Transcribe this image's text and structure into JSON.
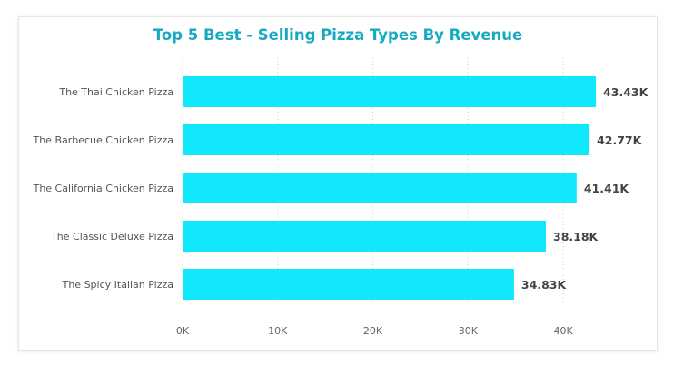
{
  "chart_data": {
    "type": "bar",
    "orientation": "horizontal",
    "title": "Top 5 Best - Selling Pizza Types By Revenue",
    "categories": [
      "The Thai Chicken Pizza",
      "The Barbecue Chicken Pizza",
      "The California Chicken Pizza",
      "The Classic Deluxe Pizza",
      "The Spicy Italian Pizza"
    ],
    "values": [
      43434,
      42768,
      41410,
      38180,
      34831
    ],
    "data_labels": [
      "43.43K",
      "42.77K",
      "41.41K",
      "38.18K",
      "34.83K"
    ],
    "x_ticks": [
      0,
      10000,
      20000,
      30000,
      40000
    ],
    "x_tick_labels": [
      "0K",
      "10K",
      "20K",
      "30K",
      "40K"
    ],
    "xlim": [
      0,
      44000
    ],
    "xlabel": "",
    "ylabel": "",
    "grid": true,
    "legend": "none",
    "bar_color": "#12e8fc",
    "title_color": "#16a9c2"
  }
}
